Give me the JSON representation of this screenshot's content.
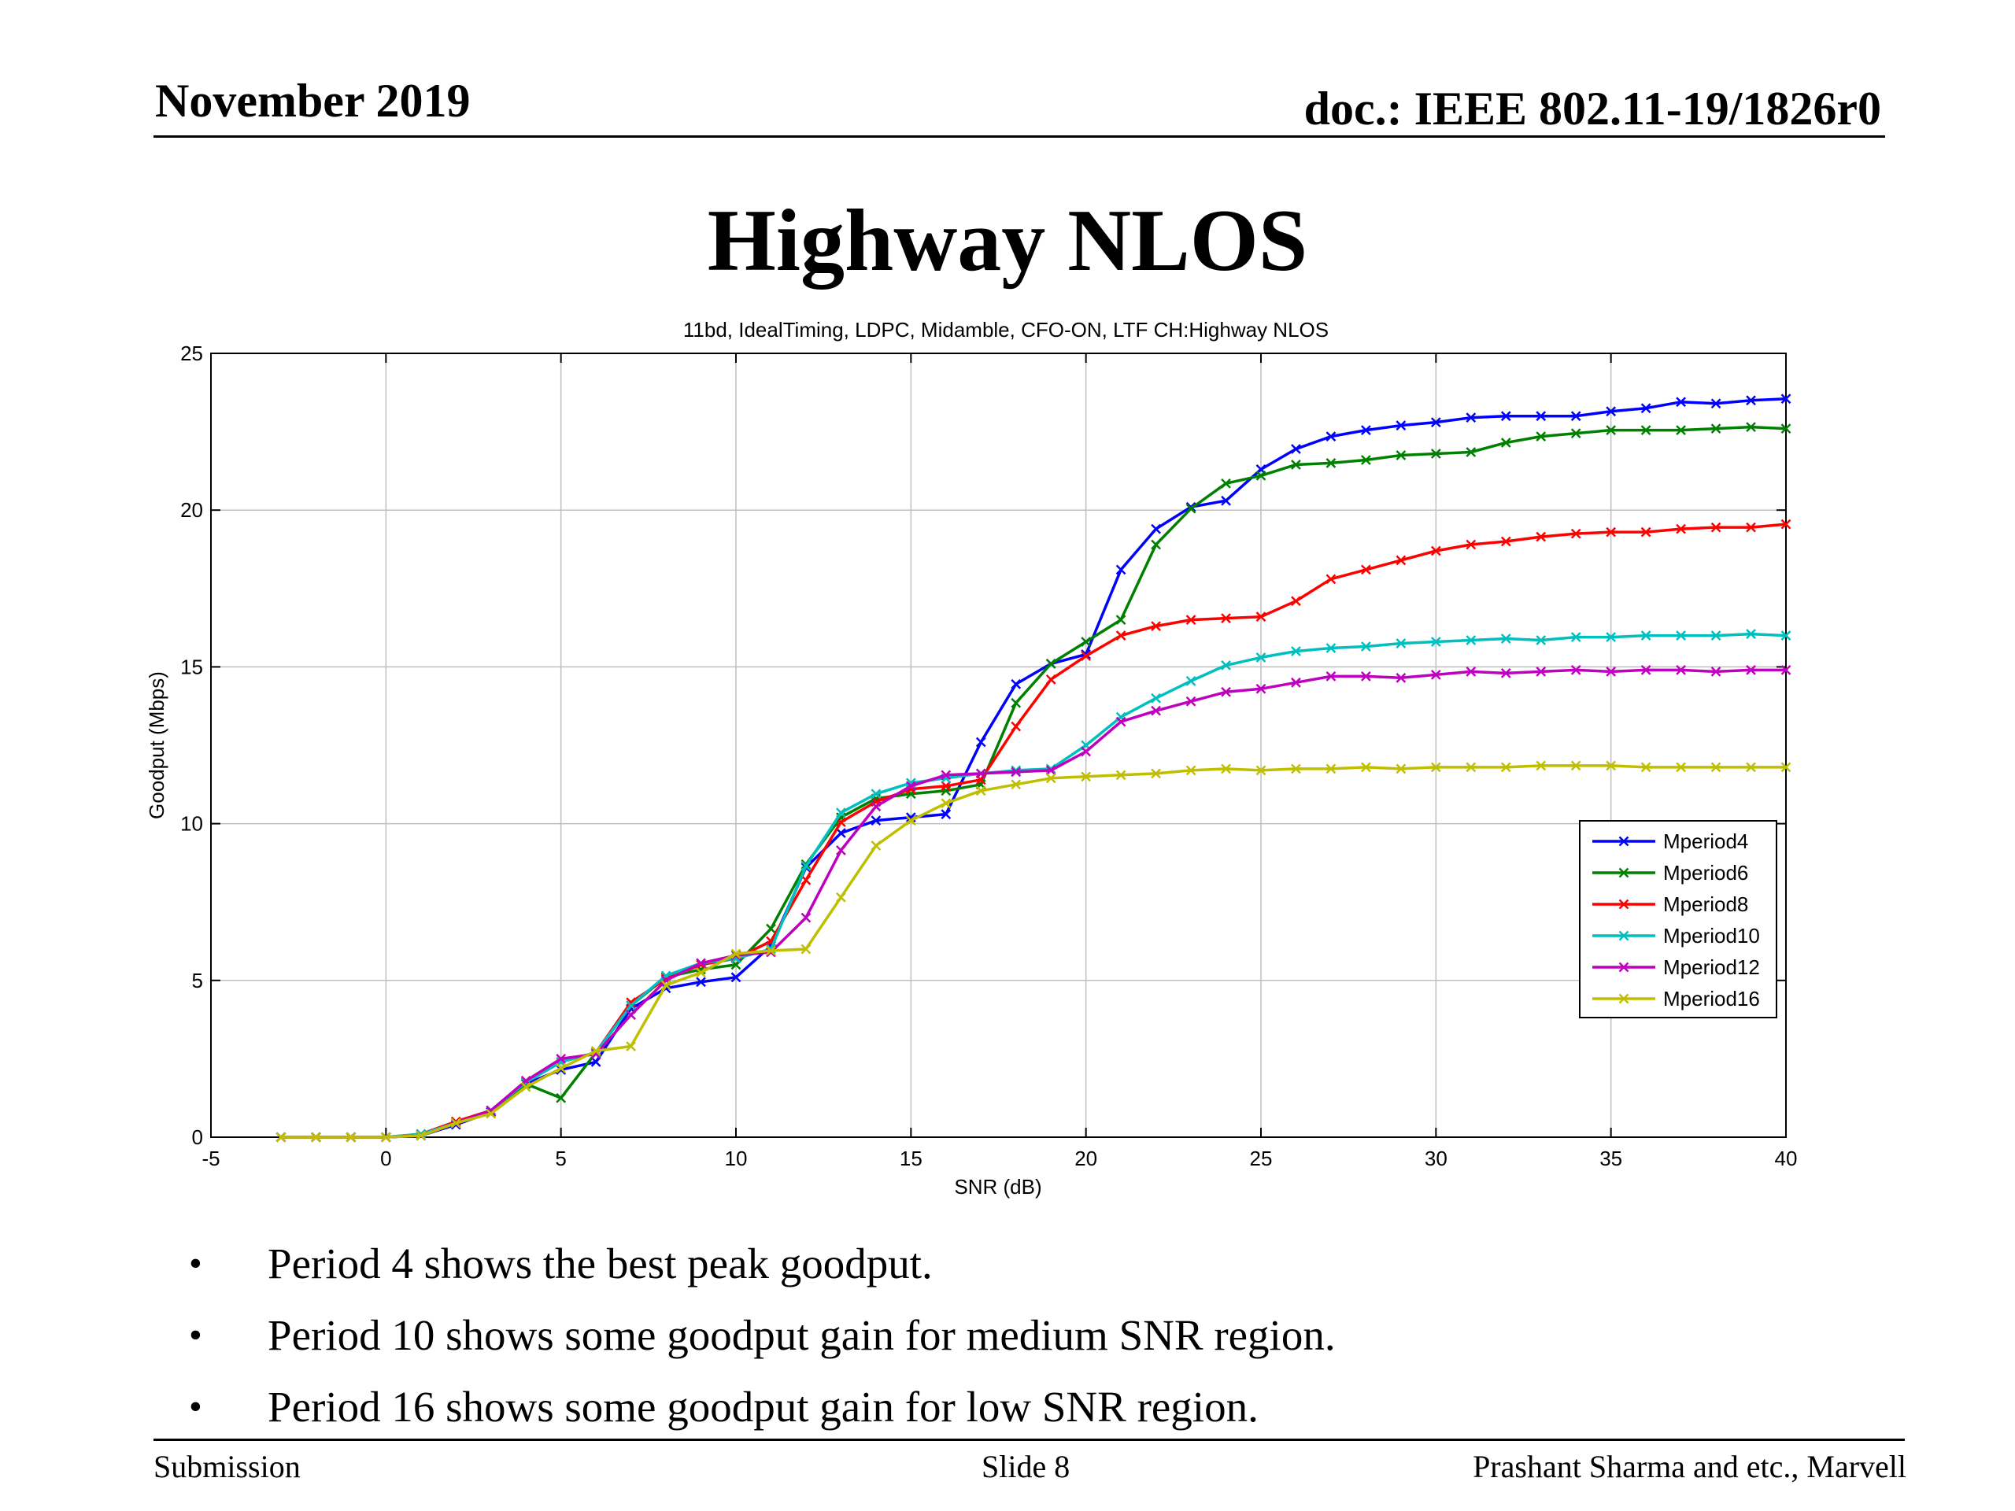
{
  "header": {
    "date": "November 2019",
    "doc_id": "doc.: IEEE 802.11-19/1826r0"
  },
  "slide_title": "Highway NLOS",
  "bullets": [
    "Period 4 shows the best peak goodput.",
    "Period 10 shows some goodput gain for medium SNR region.",
    "Period 16 shows some goodput gain for low SNR region."
  ],
  "footer": {
    "left": "Submission",
    "center": "Slide 8",
    "right": "Prashant Sharma and etc., Marvell"
  },
  "chart_data": {
    "type": "line",
    "title": "11bd, IdealTiming, LDPC, Midamble, CFO-ON, LTF CH:Highway NLOS",
    "xlabel": "SNR (dB)",
    "ylabel": "Goodput (Mbps)",
    "xlim": [
      -5,
      40
    ],
    "ylim": [
      0,
      25
    ],
    "xticks": [
      -5,
      0,
      5,
      10,
      15,
      20,
      25,
      30,
      35,
      40
    ],
    "yticks": [
      0,
      5,
      10,
      15,
      20,
      25
    ],
    "grid": true,
    "legend_position": "lower-right",
    "marker": "x",
    "x": [
      -3,
      -2,
      -1,
      0,
      1,
      2,
      3,
      4,
      5,
      6,
      7,
      8,
      9,
      10,
      11,
      12,
      13,
      14,
      15,
      16,
      17,
      18,
      19,
      20,
      21,
      22,
      23,
      24,
      25,
      26,
      27,
      28,
      29,
      30,
      31,
      32,
      33,
      34,
      35,
      36,
      37,
      38,
      39,
      40
    ],
    "series": [
      {
        "name": "Mperiod4",
        "color": "#0000ff",
        "values": [
          0,
          0,
          0,
          0,
          0.05,
          0.4,
          0.8,
          1.7,
          2.15,
          2.4,
          4.1,
          4.75,
          4.95,
          5.1,
          6.1,
          8.6,
          9.7,
          10.1,
          10.2,
          10.3,
          12.6,
          14.45,
          15.1,
          15.4,
          18.1,
          19.4,
          20.1,
          20.3,
          21.3,
          21.95,
          22.35,
          22.55,
          22.7,
          22.8,
          22.95,
          23.0,
          23.0,
          23.0,
          23.15,
          23.25,
          23.45,
          23.4,
          23.5,
          23.55
        ]
      },
      {
        "name": "Mperiod6",
        "color": "#008000",
        "values": [
          0,
          0,
          0,
          0,
          0.05,
          0.45,
          0.85,
          1.7,
          1.25,
          2.7,
          4.2,
          5.1,
          5.35,
          5.5,
          6.65,
          8.7,
          10.2,
          10.8,
          10.95,
          11.05,
          11.25,
          13.85,
          15.1,
          15.8,
          16.5,
          18.9,
          20.05,
          20.85,
          21.1,
          21.45,
          21.5,
          21.6,
          21.75,
          21.8,
          21.85,
          22.15,
          22.35,
          22.45,
          22.55,
          22.55,
          22.55,
          22.6,
          22.65,
          22.6
        ]
      },
      {
        "name": "Mperiod8",
        "color": "#ff0000",
        "values": [
          0,
          0,
          0,
          0,
          0.1,
          0.5,
          0.85,
          1.75,
          2.4,
          2.7,
          4.3,
          5.05,
          5.5,
          5.7,
          6.25,
          8.2,
          10.05,
          10.7,
          11.1,
          11.2,
          11.4,
          13.1,
          14.6,
          15.35,
          16.0,
          16.3,
          16.5,
          16.55,
          16.6,
          17.1,
          17.8,
          18.1,
          18.4,
          18.7,
          18.9,
          19.0,
          19.15,
          19.25,
          19.3,
          19.3,
          19.4,
          19.45,
          19.45,
          19.55
        ]
      },
      {
        "name": "Mperiod10",
        "color": "#00bfbf",
        "values": [
          0,
          0,
          0,
          0,
          0.1,
          0.45,
          0.85,
          1.75,
          2.4,
          2.7,
          4.2,
          5.15,
          5.55,
          5.7,
          6.0,
          8.65,
          10.35,
          10.95,
          11.3,
          11.45,
          11.6,
          11.7,
          11.75,
          12.5,
          13.4,
          14.0,
          14.55,
          15.05,
          15.3,
          15.5,
          15.6,
          15.65,
          15.75,
          15.8,
          15.85,
          15.9,
          15.85,
          15.95,
          15.95,
          16.0,
          16.0,
          16.0,
          16.05,
          16.0
        ]
      },
      {
        "name": "Mperiod12",
        "color": "#bf00bf",
        "values": [
          0,
          0,
          0,
          0,
          0.05,
          0.45,
          0.85,
          1.8,
          2.5,
          2.65,
          3.9,
          5.0,
          5.55,
          5.8,
          5.9,
          7.0,
          9.15,
          10.55,
          11.2,
          11.55,
          11.6,
          11.65,
          11.7,
          12.3,
          13.25,
          13.6,
          13.9,
          14.2,
          14.3,
          14.5,
          14.7,
          14.7,
          14.65,
          14.75,
          14.85,
          14.8,
          14.85,
          14.9,
          14.85,
          14.9,
          14.9,
          14.85,
          14.9,
          14.9
        ]
      },
      {
        "name": "Mperiod16",
        "color": "#bfbf00",
        "values": [
          0,
          0,
          0,
          0,
          0.05,
          0.45,
          0.75,
          1.6,
          2.2,
          2.75,
          2.9,
          4.85,
          5.25,
          5.85,
          5.95,
          6.0,
          7.65,
          9.3,
          10.1,
          10.65,
          11.05,
          11.25,
          11.45,
          11.5,
          11.55,
          11.6,
          11.7,
          11.75,
          11.7,
          11.75,
          11.75,
          11.8,
          11.75,
          11.8,
          11.8,
          11.8,
          11.85,
          11.85,
          11.85,
          11.8,
          11.8,
          11.8,
          11.8,
          11.8
        ]
      }
    ]
  }
}
